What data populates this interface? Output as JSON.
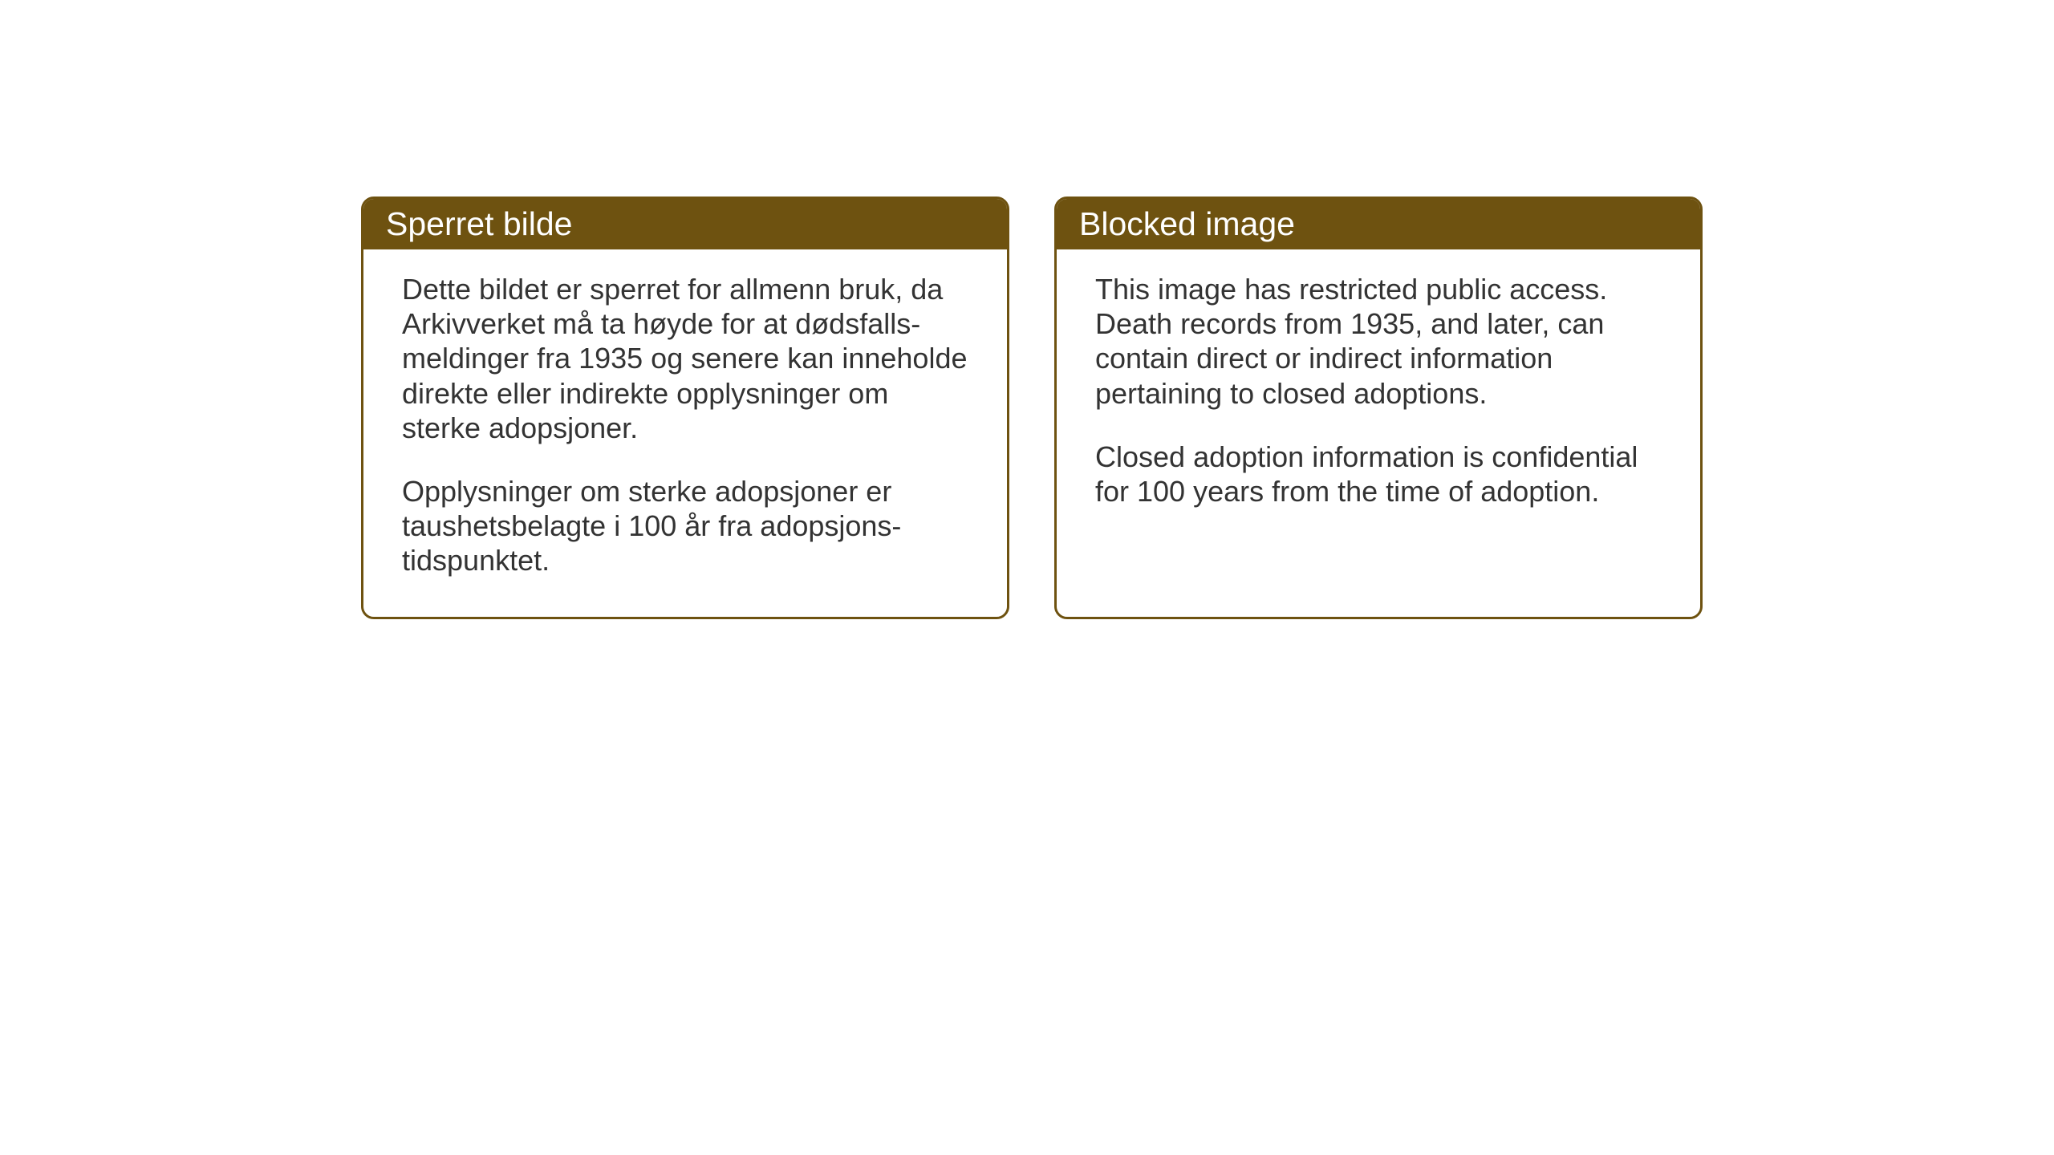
{
  "layout": {
    "background_color": "#ffffff",
    "panel_border_color": "#6e5210",
    "panel_border_radius": 16,
    "header_bg_color": "#6e5210",
    "header_text_color": "#ffffff",
    "body_text_color": "#333333",
    "header_fontsize": 41,
    "body_fontsize": 36,
    "gap_between_panels": 56
  },
  "panels": {
    "left": {
      "title": "Sperret bilde",
      "paragraph1": "Dette bildet er sperret for allmenn bruk, da Arkivverket må ta høyde for at dødsfalls-meldinger fra 1935 og senere kan inneholde direkte eller indirekte opplysninger om sterke adopsjoner.",
      "paragraph2": "Opplysninger om sterke adopsjoner er taushetsbelagte i 100 år fra adopsjons-tidspunktet."
    },
    "right": {
      "title": "Blocked image",
      "paragraph1": "This image has restricted public access. Death records from 1935, and later, can contain direct or indirect information pertaining to closed adoptions.",
      "paragraph2": "Closed adoption information is confidential for 100 years from the time of adoption."
    }
  }
}
